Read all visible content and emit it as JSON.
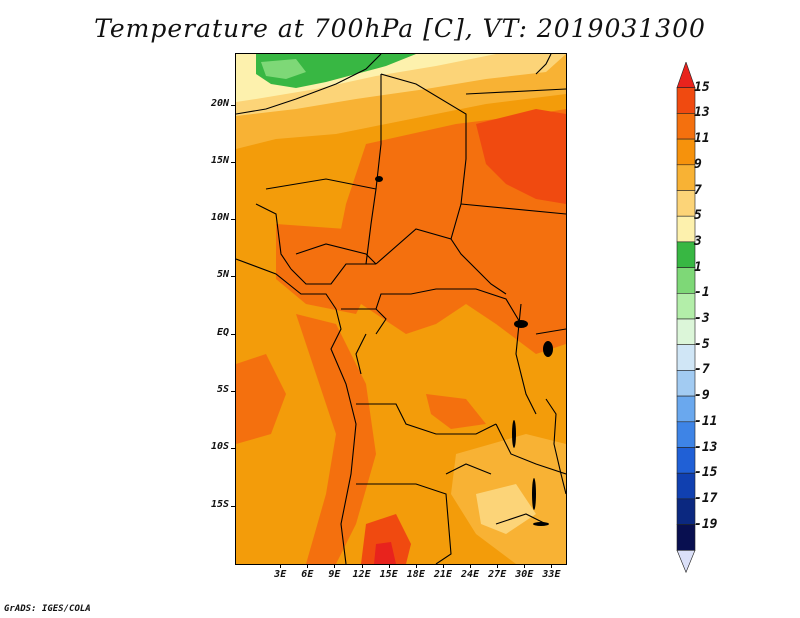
{
  "title": "Temperature at 700hPa [C], VT: 2019031300",
  "credit": "GrADS: IGES/COLA",
  "map": {
    "lon_range": [
      -2,
      34.5
    ],
    "lat_range": [
      -20,
      24.5
    ],
    "lat_ticks": [
      "20N",
      "15N",
      "10N",
      "5N",
      "EQ",
      "5S",
      "10S",
      "15S"
    ],
    "lat_tick_values": [
      20,
      15,
      10,
      5,
      0,
      -5,
      -10,
      -15
    ],
    "lon_ticks": [
      "3E",
      "6E",
      "9E",
      "12E",
      "15E",
      "18E",
      "21E",
      "24E",
      "27E",
      "30E",
      "33E"
    ],
    "lon_tick_values": [
      3,
      6,
      9,
      12,
      15,
      18,
      21,
      24,
      27,
      30,
      33
    ]
  },
  "colorbar": {
    "labels": [
      "15",
      "13",
      "11",
      "9",
      "7",
      "5",
      "3",
      "1",
      "-1",
      "-3",
      "-5",
      "-7",
      "-9",
      "-11",
      "-13",
      "-15",
      "-17",
      "-19"
    ],
    "colors": [
      "#e8231d",
      "#f04a10",
      "#f4700e",
      "#f6920c",
      "#f8b234",
      "#fcd478",
      "#fdf1ad",
      "#38b743",
      "#7ed877",
      "#b3eea9",
      "#dcf6d9",
      "#d0e6f6",
      "#a2cbf2",
      "#6aa8ee",
      "#3e84e6",
      "#2060d6",
      "#1040b0",
      "#0b2880",
      "#080f50"
    ],
    "under_color": "#dbe0f8"
  }
}
